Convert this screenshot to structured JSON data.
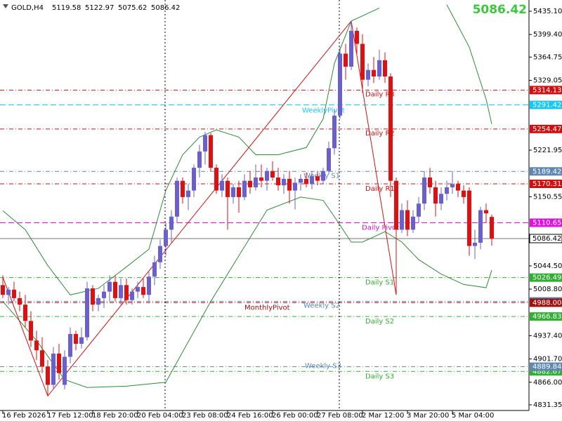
{
  "chart_data": {
    "type": "candlestick",
    "title": "GOLD,H4",
    "ohlc": [
      5119.58,
      5122.97,
      5075.62,
      5086.42
    ],
    "bid": 5086.42,
    "ylim": [
      4822.7,
      5452.3
    ],
    "yticks": [
      {
        "value": 5435.1,
        "label": "5435.10"
      },
      {
        "value": 5399.4,
        "label": "5399.40"
      },
      {
        "value": 5364.75,
        "label": "5364.75"
      },
      {
        "value": 5329.05,
        "label": "5329.05"
      },
      {
        "value": 5221.95,
        "label": "5221.95"
      },
      {
        "value": 5150.55,
        "label": "5150.55"
      },
      {
        "value": 5044.5,
        "label": "5044.50"
      },
      {
        "value": 5008.8,
        "label": "5008.80"
      },
      {
        "value": 4937.4,
        "label": "4937.40"
      },
      {
        "value": 4901.7,
        "label": "4901.70"
      },
      {
        "value": 4866,
        "label": "4866.00"
      },
      {
        "value": 4831.35,
        "label": "4831.35"
      }
    ],
    "xticks": [
      {
        "value": 0,
        "label": "16 Feb 2026"
      },
      {
        "value": 8,
        "label": "17 Feb 12:00"
      },
      {
        "value": 16,
        "label": "18 Feb 20:00"
      },
      {
        "value": 24,
        "label": "20 Feb 04:00"
      },
      {
        "value": 32,
        "label": "23 Feb 08:00"
      },
      {
        "value": 40,
        "label": "24 Feb 16:00"
      },
      {
        "value": 48,
        "label": "26 Feb 00:00"
      },
      {
        "value": 56,
        "label": "27 Feb 08:00"
      },
      {
        "value": 64,
        "label": "2 Mar 12:00"
      },
      {
        "value": 72,
        "label": "3 Mar 20:00"
      },
      {
        "value": 80,
        "label": "5 Mar 04:00"
      }
    ],
    "up_color": "#6a5fd0",
    "down_color": "#e01010",
    "candles": [
      [
        5015,
        5030,
        4995,
        5000
      ],
      [
        5000,
        5012,
        4985,
        5008
      ],
      [
        5008,
        5020,
        4990,
        4995
      ],
      [
        4995,
        5005,
        4975,
        4985
      ],
      [
        4985,
        5000,
        4950,
        4960
      ],
      [
        4960,
        4975,
        4920,
        4930
      ],
      [
        4930,
        4945,
        4900,
        4915
      ],
      [
        4915,
        4935,
        4880,
        4890
      ],
      [
        4890,
        4900,
        4845,
        4862
      ],
      [
        4862,
        4920,
        4855,
        4910
      ],
      [
        4910,
        4925,
        4870,
        4880
      ],
      [
        4862,
        4915,
        4855,
        4905
      ],
      [
        4905,
        4950,
        4895,
        4940
      ],
      [
        4940,
        4945,
        4915,
        4925
      ],
      [
        4925,
        4950,
        4918,
        4935
      ],
      [
        4935,
        5020,
        4930,
        5010
      ],
      [
        5010,
        5015,
        4975,
        4985
      ],
      [
        4985,
        5000,
        4975,
        4995
      ],
      [
        4995,
        5015,
        4980,
        5005
      ],
      [
        5005,
        5030,
        4990,
        5020
      ],
      [
        5020,
        5030,
        4990,
        4995
      ],
      [
        4995,
        5025,
        4985,
        5015
      ],
      [
        5015,
        5025,
        4985,
        4992
      ],
      [
        4992,
        5010,
        4985,
        5005
      ],
      [
        5005,
        5020,
        4995,
        5012
      ],
      [
        5012,
        5025,
        4995,
        5000
      ],
      [
        5000,
        5035,
        4990,
        5028
      ],
      [
        5028,
        5060,
        5015,
        5050
      ],
      [
        5050,
        5085,
        5040,
        5075
      ],
      [
        5075,
        5110,
        5060,
        5100
      ],
      [
        5100,
        5130,
        5080,
        5120
      ],
      [
        5120,
        5180,
        5110,
        5175
      ],
      [
        5175,
        5180,
        5140,
        5150
      ],
      [
        5150,
        5170,
        5130,
        5160
      ],
      [
        5160,
        5200,
        5150,
        5195
      ],
      [
        5195,
        5230,
        5180,
        5220
      ],
      [
        5220,
        5250,
        5200,
        5245
      ],
      [
        5245,
        5248,
        5190,
        5195
      ],
      [
        5195,
        5200,
        5155,
        5160
      ],
      [
        5160,
        5185,
        5150,
        5175
      ],
      [
        5175,
        5180,
        5100,
        5150
      ],
      [
        5150,
        5170,
        5140,
        5165
      ],
      [
        5165,
        5175,
        5126,
        5150
      ],
      [
        5150,
        5185,
        5145,
        5175
      ],
      [
        5175,
        5190,
        5155,
        5165
      ],
      [
        5165,
        5200,
        5160,
        5180
      ],
      [
        5180,
        5200,
        5165,
        5175
      ],
      [
        5175,
        5195,
        5160,
        5190
      ],
      [
        5190,
        5205,
        5175,
        5180
      ],
      [
        5180,
        5195,
        5160,
        5168
      ],
      [
        5168,
        5185,
        5155,
        5178
      ],
      [
        5178,
        5190,
        5140,
        5160
      ],
      [
        5160,
        5180,
        5131,
        5172
      ],
      [
        5172,
        5185,
        5160,
        5178
      ],
      [
        5178,
        5188,
        5165,
        5170
      ],
      [
        5170,
        5190,
        5162,
        5182
      ],
      [
        5182,
        5190,
        5168,
        5175
      ],
      [
        5175,
        5195,
        5170,
        5190
      ],
      [
        5190,
        5235,
        5185,
        5225
      ],
      [
        5225,
        5285,
        5215,
        5275
      ],
      [
        5275,
        5380,
        5270,
        5370
      ],
      [
        5370,
        5385,
        5330,
        5350
      ],
      [
        5350,
        5420,
        5345,
        5405
      ],
      [
        5405,
        5410,
        5370,
        5385
      ],
      [
        5385,
        5400,
        5310,
        5330
      ],
      [
        5330,
        5355,
        5320,
        5345
      ],
      [
        5345,
        5365,
        5325,
        5335
      ],
      [
        5335,
        5376,
        5330,
        5360
      ],
      [
        5360,
        5372,
        5325,
        5335
      ],
      [
        5335,
        5340,
        5150,
        5175
      ],
      [
        5175,
        5180,
        5000,
        5100
      ],
      [
        5100,
        5140,
        5095,
        5130
      ],
      [
        5130,
        5145,
        5090,
        5100
      ],
      [
        5100,
        5130,
        5095,
        5120
      ],
      [
        5120,
        5150,
        5110,
        5140
      ],
      [
        5140,
        5190,
        5130,
        5180
      ],
      [
        5180,
        5195,
        5155,
        5165
      ],
      [
        5165,
        5175,
        5120,
        5140
      ],
      [
        5140,
        5165,
        5130,
        5155
      ],
      [
        5155,
        5175,
        5145,
        5165
      ],
      [
        5165,
        5190,
        5155,
        5170
      ],
      [
        5170,
        5175,
        5150,
        5160
      ],
      [
        5160,
        5168,
        5140,
        5150
      ],
      [
        5160,
        5165,
        5060,
        5075
      ],
      [
        5075,
        5100,
        5055,
        5080
      ],
      [
        5080,
        5135,
        5070,
        5130
      ],
      [
        5130,
        5140,
        5110,
        5125
      ],
      [
        5119.58,
        5122.97,
        5075.62,
        5086.42
      ]
    ],
    "indicators": [
      {
        "color": "#2e8b3a",
        "x": [
          0,
          4,
          8,
          12,
          17,
          22,
          26,
          29,
          32,
          35,
          38,
          42,
          45,
          49,
          54,
          57,
          59,
          62,
          67
        ],
        "values": [
          5129,
          5100,
          5045,
          5000,
          5010,
          5043,
          5070,
          5160,
          5215,
          5242,
          5253,
          5242,
          5215,
          5215,
          5226,
          5270,
          5355,
          5420,
          5440
        ]
      },
      {
        "color": "#2e8b3a",
        "x": [
          79,
          83,
          86,
          87
        ],
        "values": [
          5445,
          5380,
          5300,
          5262
        ]
      },
      {
        "color": "#2e8b3a",
        "x": [
          0,
          6,
          11,
          15,
          22,
          29,
          37,
          47,
          53,
          57,
          59,
          62,
          64,
          68,
          71,
          74,
          78,
          82,
          86,
          87
        ],
        "values": [
          4990,
          4930,
          4870,
          4858,
          4860,
          4866,
          4990,
          5130,
          5150,
          5145,
          5120,
          5081,
          5081,
          5097,
          5081,
          5054,
          5032,
          5016,
          5011,
          5038
        ]
      },
      {
        "color": "#d01010",
        "x": [
          0,
          8,
          62,
          70
        ],
        "values": [
          5027,
          4845,
          5420,
          5000
        ]
      }
    ],
    "levels": [
      {
        "label": "Weekly S2",
        "value": 4990,
        "color": "#5f87b0",
        "dash": "dashdot"
      },
      {
        "label": "Daily R3",
        "value": 5314.13,
        "color": "#d01010",
        "dash": "dashdot"
      },
      {
        "label": "WeeklyPivot",
        "value": 5291.42,
        "color": "#18c8f0",
        "dash": "dashed"
      },
      {
        "label": "Daily R2",
        "value": 5254.47,
        "color": "#d01010",
        "dash": "dashdot"
      },
      {
        "label": "Weekly S1",
        "value": 5189.42,
        "color": "#5f87b0",
        "dash": "dashdot"
      },
      {
        "label": "Daily R1",
        "value": 5170.31,
        "color": "#d01010",
        "dash": "dashdot"
      },
      {
        "label": "Daily Pivot",
        "value": 5110.65,
        "color": "#e010e0",
        "dash": "dashed"
      },
      {
        "label": "Daily S1",
        "value": 5026.49,
        "color": "#30b030",
        "dash": "dashdot"
      },
      {
        "label": "MonthlyPivot",
        "value": {
          "value": 4988,
          "label": "4988.00"
        },
        "color": "#a01010",
        "dash": "dashdot"
      },
      {
        "label": "Daily S2",
        "value": 4966.83,
        "color": "#30b030",
        "dash": "dashdot"
      },
      {
        "label": "Daily S3",
        "value": 4882.67,
        "color": "#30b030",
        "dash": "dashdot"
      },
      {
        "label": "Weekly S3",
        "value": 4889.84,
        "color": "#5f87b0",
        "dash": "dashdot"
      }
    ]
  }
}
